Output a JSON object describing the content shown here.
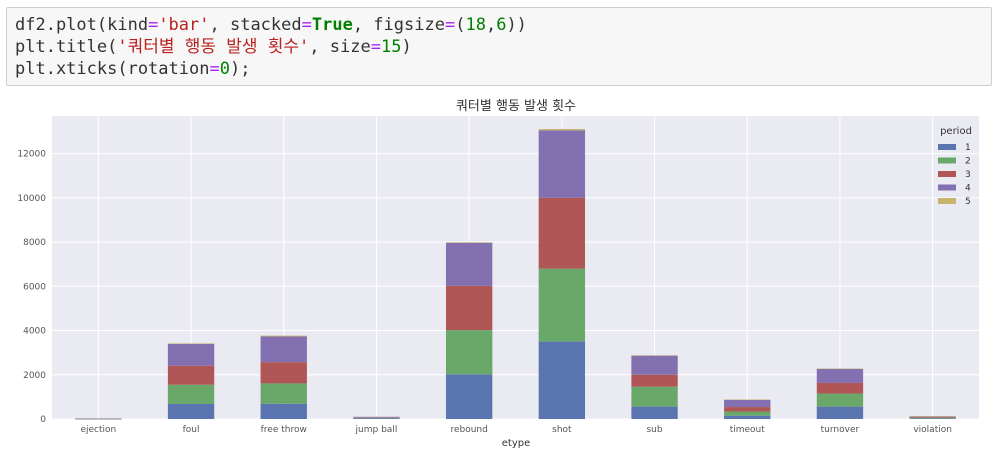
{
  "code_cell": {
    "lines": [
      [
        {
          "t": "df2.plot(kind",
          "c": "plain"
        },
        {
          "t": "=",
          "c": "op"
        },
        {
          "t": "'bar'",
          "c": "str"
        },
        {
          "t": ", stacked",
          "c": "plain"
        },
        {
          "t": "=",
          "c": "op"
        },
        {
          "t": "True",
          "c": "kw"
        },
        {
          "t": ", figsize",
          "c": "plain"
        },
        {
          "t": "=",
          "c": "op"
        },
        {
          "t": "(",
          "c": "plain"
        },
        {
          "t": "18",
          "c": "num"
        },
        {
          "t": ",",
          "c": "plain"
        },
        {
          "t": "6",
          "c": "num"
        },
        {
          "t": "))",
          "c": "plain"
        }
      ],
      [
        {
          "t": "plt.title(",
          "c": "plain"
        },
        {
          "t": "'쿼터별 행동 발생 횟수'",
          "c": "str"
        },
        {
          "t": ", size",
          "c": "plain"
        },
        {
          "t": "=",
          "c": "op"
        },
        {
          "t": "15",
          "c": "num"
        },
        {
          "t": ")",
          "c": "plain"
        }
      ],
      [
        {
          "t": "plt.xticks(rotation",
          "c": "plain"
        },
        {
          "t": "=",
          "c": "op"
        },
        {
          "t": "0",
          "c": "num"
        },
        {
          "t": ");",
          "c": "plain"
        }
      ]
    ]
  },
  "chart_data": {
    "type": "bar",
    "stacked": true,
    "title": "쿼터별 행동 발생 횟수",
    "xlabel": "etype",
    "ylabel": "",
    "ylim": [
      0,
      13700
    ],
    "yticks": [
      0,
      2000,
      4000,
      6000,
      8000,
      10000,
      12000
    ],
    "grid": true,
    "legend_title": "period",
    "legend_position": "top-right",
    "categories": [
      "ejection",
      "foul",
      "free throw",
      "jump ball",
      "rebound",
      "shot",
      "sub",
      "timeout",
      "turnover",
      "violation"
    ],
    "series": [
      {
        "name": "1",
        "color": "#5a74b0",
        "values": [
          5,
          680,
          690,
          40,
          2020,
          3500,
          560,
          150,
          560,
          30
        ]
      },
      {
        "name": "2",
        "color": "#6aa86a",
        "values": [
          5,
          870,
          920,
          20,
          2000,
          3300,
          900,
          190,
          590,
          30
        ]
      },
      {
        "name": "3",
        "color": "#b05656",
        "values": [
          5,
          860,
          960,
          20,
          2000,
          3200,
          540,
          200,
          480,
          30
        ]
      },
      {
        "name": "4",
        "color": "#8270b0",
        "values": [
          5,
          990,
          1160,
          20,
          1950,
          3050,
          870,
          330,
          640,
          30
        ]
      },
      {
        "name": "5",
        "color": "#c8b46e",
        "values": [
          0,
          20,
          40,
          0,
          20,
          60,
          10,
          10,
          10,
          5
        ]
      }
    ]
  },
  "colors": {
    "axes_bg": "#eaeaf2",
    "grid": "#ffffff"
  }
}
